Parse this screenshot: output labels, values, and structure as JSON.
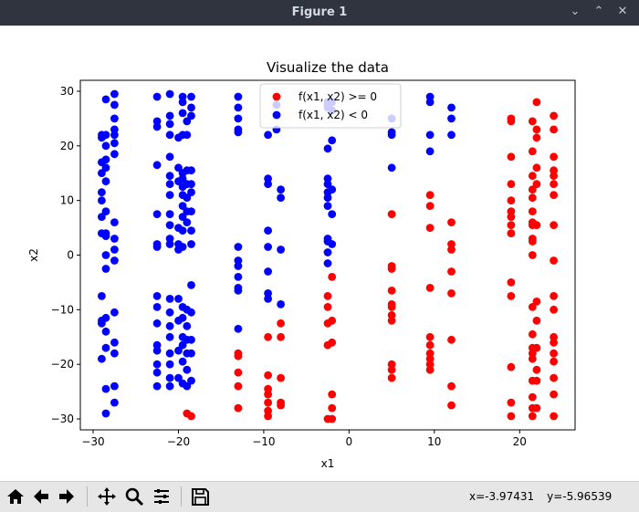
{
  "window": {
    "title": "Figure 1",
    "controls": {
      "minimize": "⌄",
      "restore": "⌃",
      "close": "✕"
    }
  },
  "toolbar": {
    "buttons": [
      "home-icon",
      "back-arrow-icon",
      "forward-arrow-icon",
      "pan-icon",
      "zoom-icon",
      "configure-subplots-icon",
      "save-icon"
    ],
    "coords": {
      "x": "x=-3.97431",
      "y": "y=-5.96539"
    }
  },
  "chart_data": {
    "type": "scatter",
    "title": "Visualize the data",
    "xlabel": "x1",
    "ylabel": "x2",
    "xlim": [
      -31.5,
      26.5
    ],
    "ylim": [
      -32,
      32
    ],
    "xticks": [
      -30,
      -20,
      -10,
      0,
      10,
      20
    ],
    "yticks": [
      -30,
      -20,
      -10,
      0,
      10,
      20,
      30
    ],
    "legend_position": "top-center",
    "series": [
      {
        "name": "f(x1, x2) >= 0",
        "color": "#ff0000",
        "points": [
          [
            -19,
            -29
          ],
          [
            -18.5,
            -29.5
          ],
          [
            -13,
            -18
          ],
          [
            -13,
            -18.5
          ],
          [
            -13,
            -21.5
          ],
          [
            -13,
            -24
          ],
          [
            -13,
            -28
          ],
          [
            -9.5,
            -15
          ],
          [
            -9.5,
            -22
          ],
          [
            -9.5,
            -24.5
          ],
          [
            -9.5,
            -25.5
          ],
          [
            -9.5,
            -27
          ],
          [
            -9.5,
            -28.5
          ],
          [
            -9.5,
            -29.5
          ],
          [
            -8,
            -12.5
          ],
          [
            -8,
            -15
          ],
          [
            -8,
            -22.5
          ],
          [
            -8,
            -27
          ],
          [
            -8,
            -27.5
          ],
          [
            -2.5,
            -7.5
          ],
          [
            -2.5,
            -9.5
          ],
          [
            -2.5,
            -12.5
          ],
          [
            -2.5,
            -16.5
          ],
          [
            -2.5,
            -30
          ],
          [
            -2,
            -4
          ],
          [
            -2,
            -12
          ],
          [
            -2,
            -16
          ],
          [
            -2,
            -25.5
          ],
          [
            -2,
            -28
          ],
          [
            -2,
            -30
          ],
          [
            5,
            7.5
          ],
          [
            5,
            -2
          ],
          [
            5,
            -2.5
          ],
          [
            5,
            -6.5
          ],
          [
            5,
            -9
          ],
          [
            5,
            -9.5
          ],
          [
            5,
            -11
          ],
          [
            5,
            -12
          ],
          [
            5,
            -20
          ],
          [
            5,
            -21
          ],
          [
            5,
            -22.5
          ],
          [
            9.5,
            11
          ],
          [
            9.5,
            9
          ],
          [
            9.5,
            5
          ],
          [
            9.5,
            -6
          ],
          [
            9.5,
            -15
          ],
          [
            9.5,
            -16.5
          ],
          [
            9.5,
            -18
          ],
          [
            9.5,
            -19
          ],
          [
            9.5,
            -20
          ],
          [
            9.5,
            -21
          ],
          [
            12,
            6
          ],
          [
            12,
            2
          ],
          [
            12,
            1
          ],
          [
            12,
            -3
          ],
          [
            12,
            -7
          ],
          [
            12,
            -15.5
          ],
          [
            12,
            -24
          ],
          [
            12,
            -27.5
          ],
          [
            19,
            25
          ],
          [
            19,
            24.5
          ],
          [
            19,
            18
          ],
          [
            19,
            13
          ],
          [
            19,
            10
          ],
          [
            19,
            8
          ],
          [
            19,
            7
          ],
          [
            19,
            5.5
          ],
          [
            19,
            4
          ],
          [
            19,
            -5
          ],
          [
            19,
            -7.5
          ],
          [
            19,
            -20.5
          ],
          [
            19,
            -27
          ],
          [
            19,
            -29.5
          ],
          [
            21.5,
            24.5
          ],
          [
            21.5,
            19
          ],
          [
            21.5,
            14.5
          ],
          [
            21.5,
            12
          ],
          [
            21.5,
            10.5
          ],
          [
            21.5,
            8
          ],
          [
            21.5,
            6
          ],
          [
            21.5,
            5.5
          ],
          [
            21.5,
            3
          ],
          [
            21.5,
            2.5
          ],
          [
            21.5,
            0
          ],
          [
            21.5,
            -9.5
          ],
          [
            21.5,
            -14.5
          ],
          [
            21.5,
            -17
          ],
          [
            21.5,
            -18
          ],
          [
            21.5,
            -19
          ],
          [
            21.5,
            -23
          ],
          [
            21.5,
            -26
          ],
          [
            21.5,
            -28
          ],
          [
            21.5,
            -29.5
          ],
          [
            22,
            28
          ],
          [
            22,
            23
          ],
          [
            22,
            21.5
          ],
          [
            22,
            16
          ],
          [
            22,
            13
          ],
          [
            22,
            5.5
          ],
          [
            22,
            -8.5
          ],
          [
            22,
            -12
          ],
          [
            22,
            -17
          ],
          [
            22,
            -21
          ],
          [
            22,
            -23
          ],
          [
            22,
            -28
          ],
          [
            24,
            25.5
          ],
          [
            24,
            23
          ],
          [
            24,
            18
          ],
          [
            24,
            15.5
          ],
          [
            24,
            14.5
          ],
          [
            24,
            13
          ],
          [
            24,
            11
          ],
          [
            24,
            5.5
          ],
          [
            24,
            -1
          ],
          [
            24,
            -7.5
          ],
          [
            24,
            -10
          ],
          [
            24,
            -15
          ],
          [
            24,
            -16
          ],
          [
            24,
            -18
          ],
          [
            24,
            -19.5
          ],
          [
            24,
            -22.5
          ],
          [
            24,
            -25.5
          ],
          [
            24,
            -29.5
          ]
        ]
      },
      {
        "name": "f(x1, x2) < 0",
        "color": "#0000ff",
        "points": [
          [
            -29,
            22
          ],
          [
            -29,
            21.5
          ],
          [
            -29,
            17
          ],
          [
            -29,
            15
          ],
          [
            -29,
            11.5
          ],
          [
            -29,
            10
          ],
          [
            -29,
            7
          ],
          [
            -29,
            4
          ],
          [
            -29,
            -7.5
          ],
          [
            -29,
            -12
          ],
          [
            -29,
            -12.5
          ],
          [
            -29,
            -19
          ],
          [
            -28.5,
            28.5
          ],
          [
            -28.5,
            22
          ],
          [
            -28.5,
            20
          ],
          [
            -28.5,
            17.5
          ],
          [
            -28.5,
            16
          ],
          [
            -28.5,
            13.5
          ],
          [
            -28.5,
            8
          ],
          [
            -28.5,
            4
          ],
          [
            -28.5,
            3.5
          ],
          [
            -28.5,
            0
          ],
          [
            -28.5,
            -2.5
          ],
          [
            -28.5,
            -11.5
          ],
          [
            -28.5,
            -14
          ],
          [
            -28.5,
            -17
          ],
          [
            -28.5,
            -24.5
          ],
          [
            -28.5,
            -29
          ],
          [
            -27.5,
            29.5
          ],
          [
            -27.5,
            27.5
          ],
          [
            -27.5,
            25
          ],
          [
            -27.5,
            23
          ],
          [
            -27.5,
            22
          ],
          [
            -27.5,
            20.5
          ],
          [
            -27.5,
            18.5
          ],
          [
            -27.5,
            6
          ],
          [
            -27.5,
            3
          ],
          [
            -27.5,
            1
          ],
          [
            -27.5,
            -1
          ],
          [
            -27.5,
            -10.5
          ],
          [
            -27.5,
            -16
          ],
          [
            -27.5,
            -18
          ],
          [
            -27.5,
            -24
          ],
          [
            -27.5,
            -27
          ],
          [
            -22.5,
            29
          ],
          [
            -22.5,
            24.5
          ],
          [
            -22.5,
            23.5
          ],
          [
            -22.5,
            16.5
          ],
          [
            -22.5,
            7.5
          ],
          [
            -22.5,
            2
          ],
          [
            -22.5,
            1.5
          ],
          [
            -22.5,
            -7.5
          ],
          [
            -22.5,
            -9.5
          ],
          [
            -22.5,
            -12.5
          ],
          [
            -22.5,
            -16.5
          ],
          [
            -22.5,
            -17.5
          ],
          [
            -22.5,
            -20
          ],
          [
            -22.5,
            -21.5
          ],
          [
            -22.5,
            -24
          ],
          [
            -21,
            29.5
          ],
          [
            -21,
            25.5
          ],
          [
            -21,
            24
          ],
          [
            -21,
            22
          ],
          [
            -21,
            18
          ],
          [
            -21,
            14.5
          ],
          [
            -21,
            13
          ],
          [
            -21,
            11
          ],
          [
            -21,
            7.5
          ],
          [
            -21,
            5.5
          ],
          [
            -21,
            3
          ],
          [
            -21,
            2
          ],
          [
            -21,
            -8
          ],
          [
            -21,
            -10.5
          ],
          [
            -21,
            -13
          ],
          [
            -21,
            -15
          ],
          [
            -21,
            -18
          ],
          [
            -21,
            -20
          ],
          [
            -21,
            -22.5
          ],
          [
            -21,
            -24
          ],
          [
            -20,
            21.5
          ],
          [
            -20,
            16
          ],
          [
            -20,
            13.5
          ],
          [
            -20,
            5
          ],
          [
            -20,
            2
          ],
          [
            -20,
            1
          ],
          [
            -20,
            -8
          ],
          [
            -20,
            -12
          ],
          [
            -20,
            -17.5
          ],
          [
            -20,
            -22.5
          ],
          [
            -19.5,
            29
          ],
          [
            -19.5,
            28
          ],
          [
            -19.5,
            26
          ],
          [
            -19.5,
            22
          ],
          [
            -19.5,
            15
          ],
          [
            -19.5,
            14
          ],
          [
            -19.5,
            12.5
          ],
          [
            -19.5,
            11
          ],
          [
            -19.5,
            9
          ],
          [
            -19.5,
            7
          ],
          [
            -19.5,
            4.5
          ],
          [
            -19.5,
            1.5
          ],
          [
            -19.5,
            -9.5
          ],
          [
            -19.5,
            -11.5
          ],
          [
            -19.5,
            -15
          ],
          [
            -19.5,
            -16.5
          ],
          [
            -19.5,
            -19.5
          ],
          [
            -19.5,
            -23.5
          ],
          [
            -19,
            24.5
          ],
          [
            -19,
            22
          ],
          [
            -19,
            15.5
          ],
          [
            -19,
            13
          ],
          [
            -19,
            10.5
          ],
          [
            -19,
            8
          ],
          [
            -19,
            6
          ],
          [
            -19,
            -10
          ],
          [
            -19,
            -13
          ],
          [
            -19,
            -15.5
          ],
          [
            -19,
            -18
          ],
          [
            -19,
            -21
          ],
          [
            -19,
            -24
          ],
          [
            -18.5,
            29
          ],
          [
            -18.5,
            27
          ],
          [
            -18.5,
            25.5
          ],
          [
            -18.5,
            15.5
          ],
          [
            -18.5,
            13
          ],
          [
            -18.5,
            11.5
          ],
          [
            -18.5,
            8
          ],
          [
            -18.5,
            4.5
          ],
          [
            -18.5,
            2
          ],
          [
            -18.5,
            -5.5
          ],
          [
            -18.5,
            -10.5
          ],
          [
            -18.5,
            -15.5
          ],
          [
            -18.5,
            -18
          ],
          [
            -18.5,
            -23
          ],
          [
            -13,
            29
          ],
          [
            -13,
            27
          ],
          [
            -13,
            25
          ],
          [
            -13,
            23
          ],
          [
            -13,
            22.5
          ],
          [
            -13,
            1.5
          ],
          [
            -13,
            -1
          ],
          [
            -13,
            -2
          ],
          [
            -13,
            -4
          ],
          [
            -13,
            -6
          ],
          [
            -13,
            -6.5
          ],
          [
            -13,
            -13.5
          ],
          [
            -9.5,
            22
          ],
          [
            -9.5,
            14
          ],
          [
            -9.5,
            13
          ],
          [
            -9.5,
            4.5
          ],
          [
            -9.5,
            1.5
          ],
          [
            -9.5,
            -3
          ],
          [
            -9.5,
            -7
          ],
          [
            -9.5,
            -8
          ],
          [
            -8.5,
            27.5
          ],
          [
            -8.5,
            23
          ],
          [
            -8,
            12
          ],
          [
            -8,
            10.5
          ],
          [
            -8,
            1
          ],
          [
            -8,
            -9
          ],
          [
            -2.5,
            28
          ],
          [
            -2.5,
            27.5
          ],
          [
            -2.5,
            27
          ],
          [
            -2.5,
            19.5
          ],
          [
            -2.5,
            14
          ],
          [
            -2.5,
            13
          ],
          [
            -2.5,
            11.5
          ],
          [
            -2.5,
            10.5
          ],
          [
            -2.5,
            9
          ],
          [
            -2.5,
            3
          ],
          [
            -2.5,
            2.5
          ],
          [
            -2.5,
            0.5
          ],
          [
            -2.5,
            -1.5
          ],
          [
            -2,
            28
          ],
          [
            -2,
            26.5
          ],
          [
            -2,
            21
          ],
          [
            -2,
            12
          ],
          [
            -2,
            7.5
          ],
          [
            -2,
            2
          ],
          [
            5,
            25
          ],
          [
            5,
            22.5
          ],
          [
            5,
            22
          ],
          [
            5,
            16
          ],
          [
            9.5,
            29
          ],
          [
            9.5,
            28
          ],
          [
            9.5,
            22
          ],
          [
            9.5,
            19
          ],
          [
            12,
            27
          ],
          [
            12,
            25
          ],
          [
            12,
            22
          ]
        ]
      }
    ]
  }
}
